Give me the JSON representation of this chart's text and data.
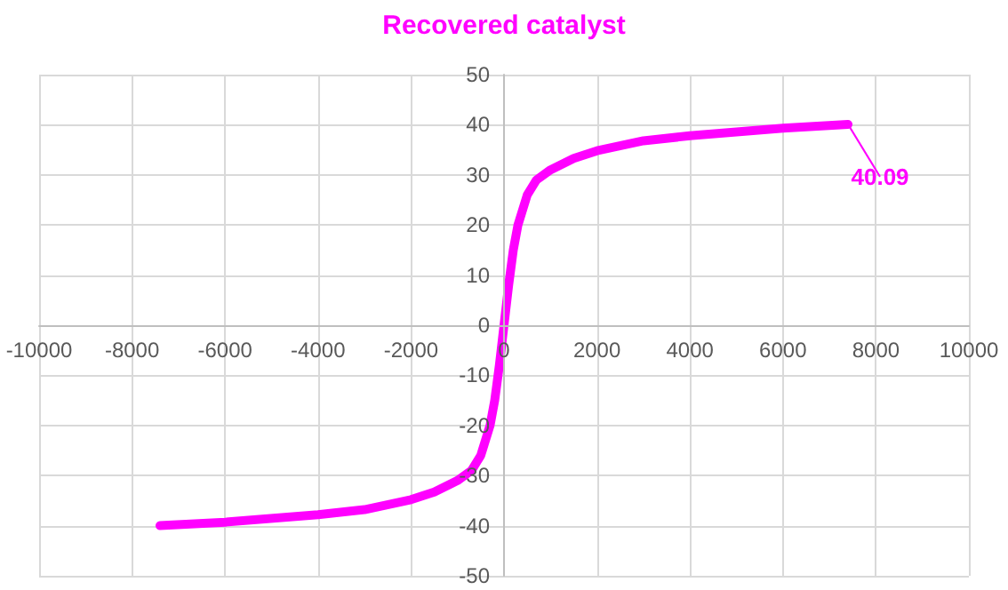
{
  "chart_data": {
    "type": "line",
    "title": "Recovered catalyst",
    "x": [
      -7400,
      -6000,
      -4000,
      -3000,
      -2000,
      -1500,
      -1000,
      -700,
      -500,
      -300,
      -200,
      -100,
      0,
      100,
      200,
      300,
      500,
      700,
      1000,
      1500,
      2000,
      3000,
      4000,
      6000,
      7400
    ],
    "series": [
      {
        "color": "#ff00ff",
        "values": [
          -40,
          -39.3,
          -37.8,
          -36.8,
          -34.8,
          -33.3,
          -31,
          -29,
          -26,
          -20,
          -15,
          -8,
          0,
          8,
          15,
          20,
          26,
          29,
          31,
          33.3,
          34.8,
          36.8,
          37.8,
          39.3,
          40.09
        ],
        "value_labels": [
          null,
          null,
          null,
          null,
          null,
          null,
          null,
          null,
          null,
          null,
          null,
          null,
          null,
          null,
          null,
          null,
          null,
          null,
          null,
          null,
          null,
          null,
          null,
          null,
          "40.09"
        ]
      }
    ],
    "xlim": [
      -10000,
      10000
    ],
    "xticks": [
      -10000,
      -8000,
      -6000,
      -4000,
      -2000,
      0,
      2000,
      4000,
      6000,
      8000,
      10000
    ],
    "ylim": [
      -50,
      50
    ],
    "yticks": [
      -50,
      -40,
      -30,
      -20,
      -10,
      0,
      10,
      20,
      30,
      40,
      50
    ],
    "grid": true,
    "marker": "none",
    "line_style": "solid"
  }
}
